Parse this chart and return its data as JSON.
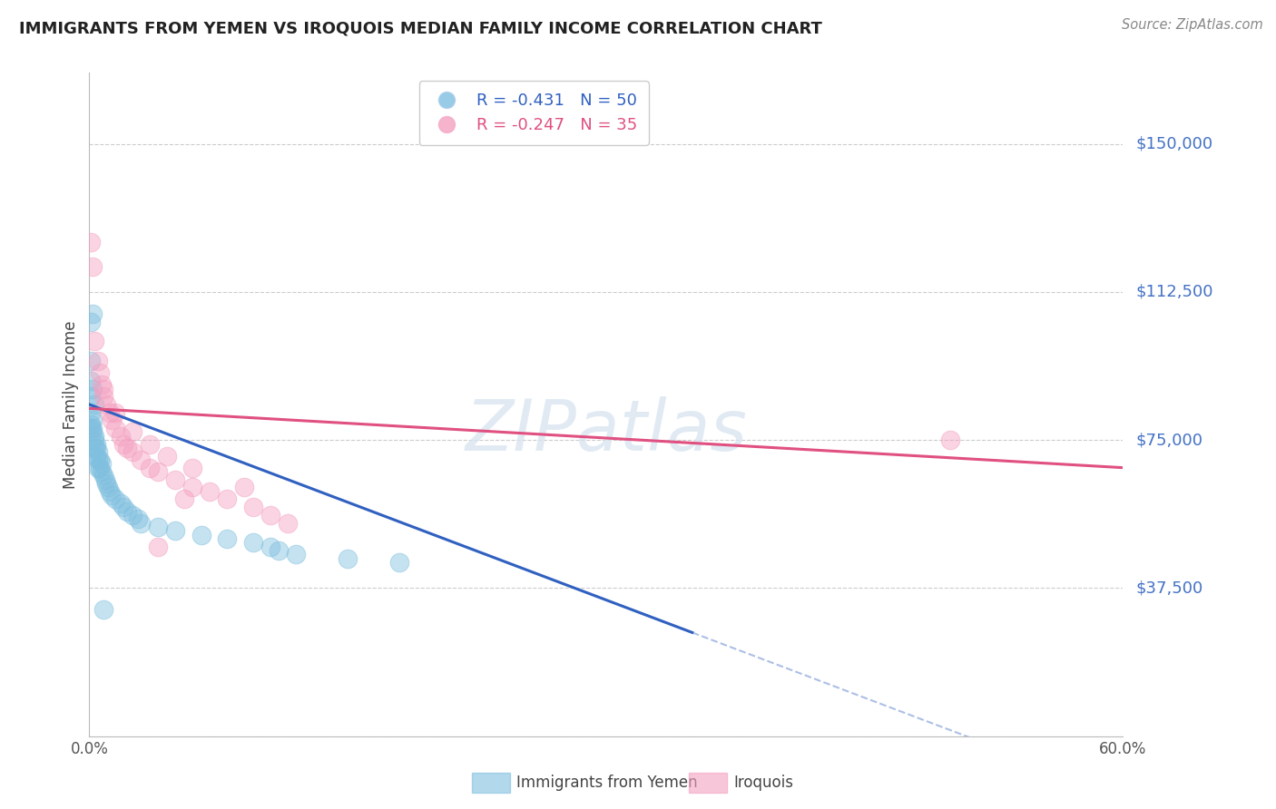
{
  "title": "IMMIGRANTS FROM YEMEN VS IROQUOIS MEDIAN FAMILY INCOME CORRELATION CHART",
  "source": "Source: ZipAtlas.com",
  "ylabel": "Median Family Income",
  "yticks": [
    0,
    37500,
    75000,
    112500,
    150000
  ],
  "ytick_labels": [
    "",
    "$37,500",
    "$75,000",
    "$112,500",
    "$150,000"
  ],
  "xmin": 0.0,
  "xmax": 0.6,
  "ymin": 0,
  "ymax": 168000,
  "legend1_label": "R = -0.431   N = 50",
  "legend2_label": "R = -0.247   N = 35",
  "watermark": "ZIPatlas",
  "blue_color": "#7fbfdf",
  "blue_line_color": "#3060c0",
  "pink_color": "#f4a0c0",
  "pink_line_color": "#e05080",
  "background_color": "#ffffff",
  "grid_color": "#cccccc",
  "title_color": "#222222",
  "yaxis_label_color": "#4472c4",
  "blue_scatter_x": [
    0.001,
    0.002,
    0.001,
    0.001,
    0.002,
    0.001,
    0.003,
    0.001,
    0.002,
    0.001,
    0.001,
    0.002,
    0.002,
    0.003,
    0.003,
    0.004,
    0.003,
    0.004,
    0.005,
    0.004,
    0.005,
    0.006,
    0.007,
    0.005,
    0.006,
    0.007,
    0.008,
    0.009,
    0.01,
    0.011,
    0.012,
    0.013,
    0.015,
    0.018,
    0.02,
    0.022,
    0.025,
    0.028,
    0.03,
    0.04,
    0.05,
    0.065,
    0.08,
    0.095,
    0.105,
    0.11,
    0.12,
    0.15,
    0.18,
    0.008
  ],
  "blue_scatter_y": [
    105000,
    107000,
    95000,
    90000,
    88000,
    86000,
    84000,
    82000,
    80000,
    79000,
    78000,
    78000,
    77000,
    76000,
    75000,
    74000,
    73000,
    73000,
    72000,
    71000,
    70000,
    70000,
    69000,
    68000,
    68000,
    67000,
    66000,
    65000,
    64000,
    63000,
    62000,
    61000,
    60000,
    59000,
    58000,
    57000,
    56000,
    55000,
    54000,
    53000,
    52000,
    51000,
    50000,
    49000,
    48000,
    47000,
    46000,
    45000,
    44000,
    32000
  ],
  "pink_scatter_x": [
    0.001,
    0.002,
    0.003,
    0.005,
    0.006,
    0.007,
    0.008,
    0.01,
    0.012,
    0.013,
    0.015,
    0.018,
    0.02,
    0.022,
    0.025,
    0.03,
    0.035,
    0.04,
    0.05,
    0.06,
    0.07,
    0.08,
    0.095,
    0.105,
    0.115,
    0.008,
    0.015,
    0.025,
    0.035,
    0.045,
    0.06,
    0.09,
    0.5,
    0.04,
    0.055
  ],
  "pink_scatter_y": [
    125000,
    119000,
    100000,
    95000,
    92000,
    89000,
    86000,
    84000,
    82000,
    80000,
    78000,
    76000,
    74000,
    73000,
    72000,
    70000,
    68000,
    67000,
    65000,
    63000,
    62000,
    60000,
    58000,
    56000,
    54000,
    88000,
    82000,
    77000,
    74000,
    71000,
    68000,
    63000,
    75000,
    48000,
    60000
  ],
  "blue_line_x0": 0.0,
  "blue_line_x_solid_end": 0.35,
  "blue_line_x_dashed_end": 0.6,
  "blue_line_y_intercept": 84000,
  "blue_line_slope": -165000,
  "pink_line_x0": 0.0,
  "pink_line_x_end": 0.6,
  "pink_line_y_intercept": 83000,
  "pink_line_slope": -25000,
  "bottom_legend_labels": [
    "Immigrants from Yemen",
    "Iroquois"
  ],
  "bottom_legend_colors": [
    "#7fbfdf",
    "#f4a0c0"
  ]
}
